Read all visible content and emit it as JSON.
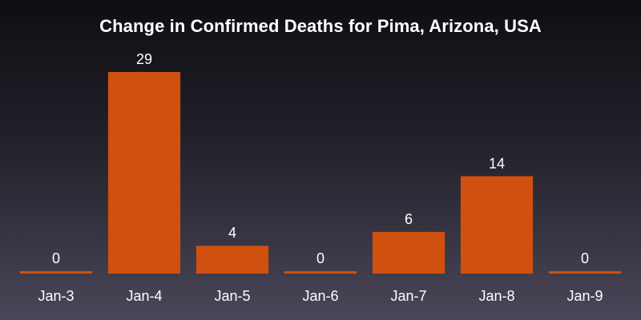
{
  "chart_data": {
    "type": "bar",
    "title": "Change in Confirmed Deaths for Pima, Arizona, USA",
    "xlabel": "",
    "ylabel": "",
    "categories": [
      "Jan-3",
      "Jan-4",
      "Jan-5",
      "Jan-6",
      "Jan-7",
      "Jan-8",
      "Jan-9"
    ],
    "values": [
      0,
      29,
      4,
      0,
      6,
      14,
      0
    ],
    "ylim": [
      0,
      29
    ],
    "grid": false,
    "data_labels": true,
    "bar_color": "#d0500f",
    "text_color": "#ffffff"
  }
}
